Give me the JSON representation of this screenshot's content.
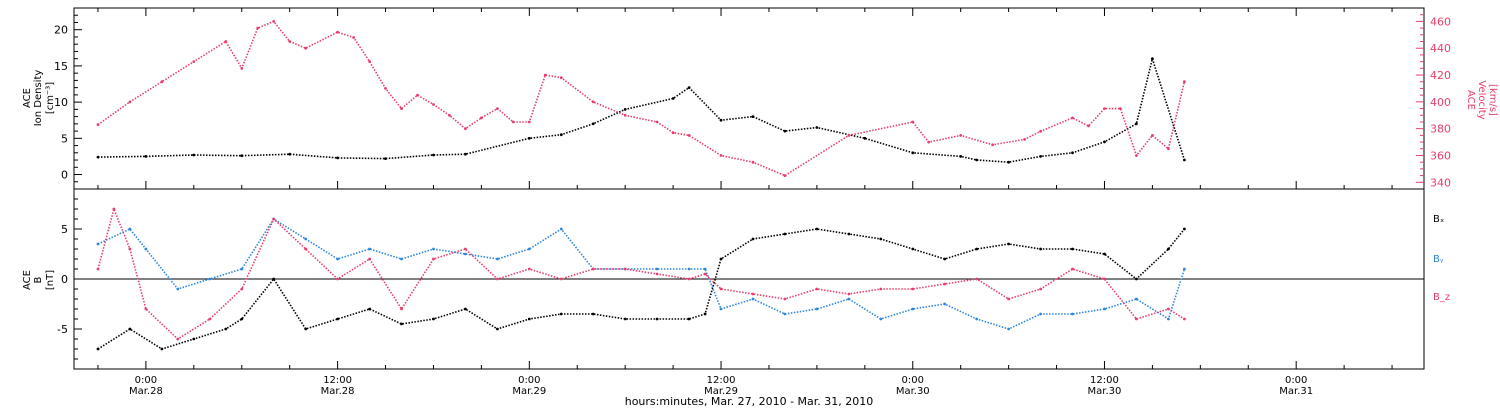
{
  "colors": {
    "black": "#000000",
    "red": "#e83e6c",
    "blue": "#2b86dc",
    "frame": "#000000"
  },
  "chart_data": [
    {
      "type": "scatter",
      "panel": "top",
      "ylabel_lines": [
        "ACE",
        "Ion Density",
        "[cm⁻³]"
      ],
      "y2label_lines": [
        "ACE",
        "Velocity",
        "[km/s]"
      ],
      "ylim": [
        -2,
        23
      ],
      "y2lim": [
        335,
        470
      ],
      "yticks": [
        0,
        5,
        10,
        15,
        20
      ],
      "y2ticks": [
        340,
        360,
        380,
        400,
        420,
        440,
        460
      ],
      "series": [
        {
          "name": "density",
          "axis": "left",
          "color_key": "black",
          "x": [
            -3,
            0,
            3,
            6,
            9,
            12,
            15,
            18,
            20,
            24,
            26,
            28,
            30,
            33,
            34,
            36,
            38,
            40,
            42,
            45,
            48,
            51,
            52,
            54,
            56,
            58,
            60,
            62,
            63,
            65
          ],
          "y": [
            2.4,
            2.5,
            2.7,
            2.6,
            2.8,
            2.3,
            2.2,
            2.7,
            2.8,
            5.0,
            5.5,
            7.0,
            9.0,
            10.5,
            12.0,
            7.5,
            8.0,
            6.0,
            6.5,
            5.0,
            3.0,
            2.5,
            2.0,
            1.7,
            2.5,
            3.0,
            4.5,
            7.0,
            16.0,
            2.0
          ]
        },
        {
          "name": "velocity",
          "axis": "right",
          "color_key": "red",
          "x": [
            -3,
            -1,
            1,
            3,
            5,
            6,
            7,
            8,
            9,
            10,
            12,
            13,
            14,
            15,
            16,
            17,
            18,
            19,
            20,
            21,
            22,
            23,
            24,
            25,
            26,
            28,
            30,
            32,
            33,
            34,
            36,
            38,
            40,
            44,
            48,
            49,
            51,
            53,
            55,
            56,
            58,
            59,
            60,
            61,
            62,
            63,
            64,
            65
          ],
          "y": [
            383,
            400,
            415,
            430,
            445,
            425,
            455,
            460,
            445,
            440,
            452,
            448,
            430,
            410,
            395,
            405,
            398,
            390,
            380,
            388,
            395,
            385,
            385,
            420,
            418,
            400,
            390,
            385,
            377,
            375,
            360,
            355,
            345,
            375,
            385,
            370,
            375,
            368,
            372,
            378,
            388,
            382,
            395,
            395,
            360,
            375,
            365,
            415
          ]
        }
      ]
    },
    {
      "type": "scatter",
      "panel": "bottom",
      "ylabel_lines": [
        "ACE",
        "B",
        "[nT]"
      ],
      "ylim": [
        -9,
        9
      ],
      "yticks": [
        -5,
        0,
        5
      ],
      "legend_position": "right",
      "series": [
        {
          "name": "Bₓ",
          "color_key": "black",
          "x": [
            -3,
            -1,
            1,
            3,
            5,
            6,
            8,
            10,
            12,
            14,
            16,
            18,
            20,
            22,
            24,
            26,
            28,
            30,
            32,
            34,
            35,
            36,
            38,
            40,
            42,
            44,
            46,
            48,
            50,
            52,
            54,
            56,
            58,
            60,
            62,
            64,
            65
          ],
          "y": [
            -7.0,
            -5.0,
            -7.0,
            -6.0,
            -5.0,
            -4.0,
            0.0,
            -5.0,
            -4.0,
            -3.0,
            -4.5,
            -4.0,
            -3.0,
            -5.0,
            -4.0,
            -3.5,
            -3.5,
            -4.0,
            -4.0,
            -4.0,
            -3.5,
            2.0,
            4.0,
            4.5,
            5.0,
            4.5,
            4.0,
            3.0,
            2.0,
            3.0,
            3.5,
            3.0,
            3.0,
            2.5,
            0.0,
            3.0,
            5.0
          ]
        },
        {
          "name": "Bᵧ",
          "color_key": "blue",
          "x": [
            -3,
            -1,
            0,
            2,
            4,
            6,
            8,
            10,
            12,
            14,
            16,
            18,
            20,
            22,
            24,
            26,
            28,
            30,
            32,
            34,
            35,
            36,
            38,
            40,
            42,
            44,
            46,
            48,
            50,
            52,
            54,
            56,
            58,
            60,
            62,
            64,
            65
          ],
          "y": [
            3.5,
            5.0,
            3.0,
            -1.0,
            0.0,
            1.0,
            6.0,
            4.0,
            2.0,
            3.0,
            2.0,
            3.0,
            2.5,
            2.0,
            3.0,
            5.0,
            1.0,
            1.0,
            1.0,
            1.0,
            1.0,
            -3.0,
            -2.0,
            -3.5,
            -3.0,
            -2.0,
            -4.0,
            -3.0,
            -2.5,
            -4.0,
            -5.0,
            -3.5,
            -3.5,
            -3.0,
            -2.0,
            -4.0,
            1.0
          ]
        },
        {
          "name": "B_z",
          "color_key": "red",
          "x": [
            -3,
            -2,
            -1,
            0,
            2,
            4,
            6,
            8,
            10,
            12,
            14,
            16,
            18,
            20,
            22,
            24,
            26,
            28,
            30,
            32,
            34,
            35,
            36,
            38,
            40,
            42,
            44,
            46,
            48,
            50,
            52,
            54,
            56,
            58,
            60,
            62,
            64,
            65
          ],
          "y": [
            1.0,
            7.0,
            3.0,
            -3.0,
            -6.0,
            -4.0,
            -1.0,
            6.0,
            3.0,
            0.0,
            2.0,
            -3.0,
            2.0,
            3.0,
            0.0,
            1.0,
            0.0,
            1.0,
            1.0,
            0.5,
            0.0,
            0.5,
            -1.0,
            -1.5,
            -2.0,
            -1.0,
            -1.5,
            -1.0,
            -1.0,
            -0.5,
            0.0,
            -2.0,
            -1.0,
            1.0,
            0.0,
            -4.0,
            -3.0,
            -4.0
          ]
        }
      ]
    }
  ],
  "x_axis": {
    "min": -4.5,
    "max": 80,
    "tick_hours": [
      0,
      12,
      24,
      36,
      48,
      60,
      72
    ],
    "tick_time_labels": [
      "0:00",
      "12:00",
      "0:00",
      "12:00",
      "0:00",
      "12:00",
      "0:00"
    ],
    "tick_date_labels": [
      "Mar.28",
      "Mar.28",
      "Mar.29",
      "Mar.29",
      "Mar.30",
      "Mar.30",
      "Mar.31"
    ],
    "xlabel": "hours:minutes, Mar. 27, 2010 - Mar. 31, 2010"
  }
}
